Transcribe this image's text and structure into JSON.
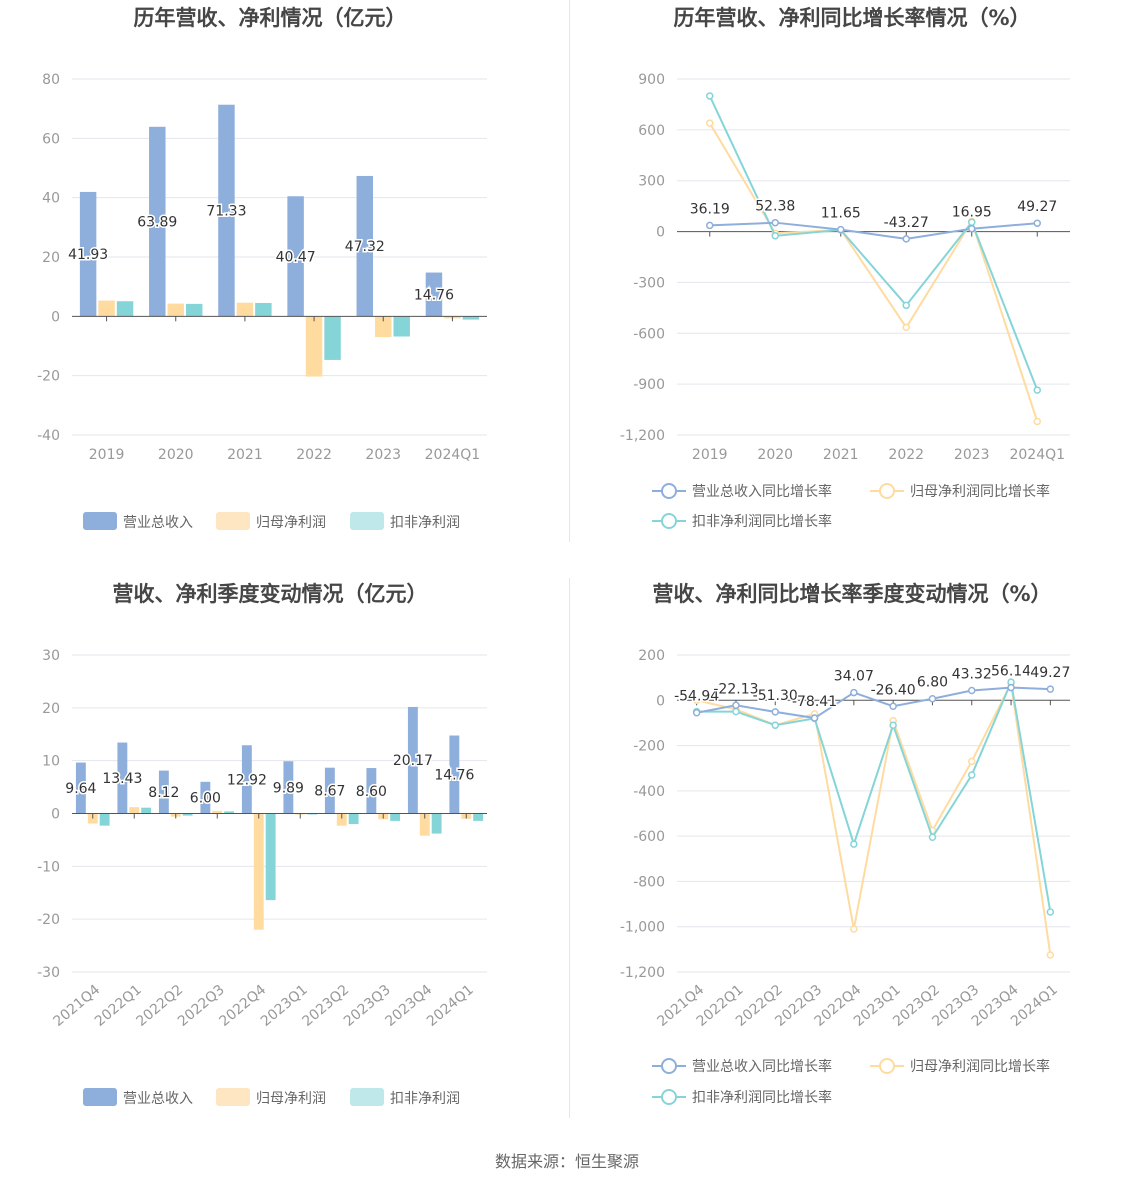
{
  "colors": {
    "revenue": "#8eaedb",
    "net_profit": "#ffdba0",
    "deducted_profit": "#85d5d8",
    "revenue_legend": "#8eaedb",
    "net_profit_legend": "#fde6c1",
    "deducted_profit_legend": "#bfe8ea",
    "grid": "#e3e6ee",
    "axis": "#555555"
  },
  "footer": {
    "source": "数据来源：恒生聚源"
  },
  "chart_data": [
    {
      "id": "annual_amount",
      "type": "bar",
      "title": "历年营收、净利情况（亿元）",
      "categories": [
        "2019",
        "2020",
        "2021",
        "2022",
        "2023",
        "2024Q1"
      ],
      "ylim": [
        -40,
        80
      ],
      "yticks": [
        80,
        60,
        40,
        20,
        0,
        -20,
        -40
      ],
      "ytick_labels": [
        "80",
        "60",
        "40",
        "20",
        "0",
        "-20",
        "-40"
      ],
      "grid": true,
      "legend_position": "bottom",
      "series": [
        {
          "name": "营业总收入",
          "values": [
            41.93,
            63.89,
            71.33,
            40.47,
            47.32,
            14.76
          ],
          "labels": [
            "41.93",
            "63.89",
            "71.33",
            "40.47",
            "47.32",
            "14.76"
          ]
        },
        {
          "name": "归母净利润",
          "values": [
            5.3,
            4.3,
            4.6,
            -20.3,
            -7.0,
            -0.7
          ]
        },
        {
          "name": "扣非净利润",
          "values": [
            5.1,
            4.2,
            4.5,
            -14.7,
            -6.8,
            -1.1
          ]
        }
      ]
    },
    {
      "id": "annual_growth",
      "type": "line",
      "title": "历年营收、净利同比增长率情况（%）",
      "categories": [
        "2019",
        "2020",
        "2021",
        "2022",
        "2023",
        "2024Q1"
      ],
      "ylim": [
        -1200,
        900
      ],
      "yticks": [
        900,
        600,
        300,
        0,
        -300,
        -600,
        -900,
        -1200
      ],
      "ytick_labels": [
        "900",
        "600",
        "300",
        "0",
        "-300",
        "-600",
        "-900",
        "-1,200"
      ],
      "grid": true,
      "legend_position": "bottom",
      "series": [
        {
          "name": "营业总收入同比增长率",
          "values": [
            36.19,
            52.38,
            11.65,
            -43.27,
            16.95,
            49.27
          ],
          "labels": [
            "36.19",
            "52.38",
            "11.65",
            "-43.27",
            "16.95",
            "49.27"
          ]
        },
        {
          "name": "归母净利润同比增长率",
          "values": [
            640,
            -10,
            10,
            -565,
            60,
            -1120
          ]
        },
        {
          "name": "扣非净利润同比增长率",
          "values": [
            800,
            -25,
            10,
            -435,
            55,
            -935
          ]
        }
      ]
    },
    {
      "id": "quarterly_amount",
      "type": "bar",
      "title": "营收、净利季度变动情况（亿元）",
      "categories": [
        "2021Q4",
        "2022Q1",
        "2022Q2",
        "2022Q3",
        "2022Q4",
        "2023Q1",
        "2023Q2",
        "2023Q3",
        "2023Q4",
        "2024Q1"
      ],
      "ylim": [
        -30,
        30
      ],
      "yticks": [
        30,
        20,
        10,
        0,
        -10,
        -20,
        -30
      ],
      "ytick_labels": [
        "30",
        "20",
        "10",
        "0",
        "-10",
        "-20",
        "-30"
      ],
      "grid": true,
      "legend_position": "bottom",
      "series": [
        {
          "name": "营业总收入",
          "values": [
            9.64,
            13.43,
            8.12,
            6.0,
            12.92,
            9.89,
            8.67,
            8.6,
            20.17,
            14.76
          ],
          "labels": [
            "9.64",
            "13.43",
            "8.12",
            "6.00",
            "12.92",
            "9.89",
            "8.67",
            "8.60",
            "20.17",
            "14.76"
          ]
        },
        {
          "name": "归母净利润",
          "values": [
            -1.9,
            1.2,
            -0.6,
            0.5,
            -22.0,
            -0.1,
            -2.3,
            -1.1,
            -4.2,
            -1.0
          ]
        },
        {
          "name": "扣非净利润",
          "values": [
            -2.3,
            1.1,
            -0.4,
            0.4,
            -16.4,
            -0.1,
            -2.0,
            -1.4,
            -3.8,
            -1.4
          ]
        }
      ]
    },
    {
      "id": "quarterly_growth",
      "type": "line",
      "title": "营收、净利同比增长率季度变动情况（%）",
      "categories": [
        "2021Q4",
        "2022Q1",
        "2022Q2",
        "2022Q3",
        "2022Q4",
        "2023Q1",
        "2023Q2",
        "2023Q3",
        "2023Q4",
        "2024Q1"
      ],
      "ylim": [
        -1200,
        200
      ],
      "yticks": [
        200,
        0,
        -200,
        -400,
        -600,
        -800,
        -1000,
        -1200
      ],
      "ytick_labels": [
        "200",
        "0",
        "-200",
        "-400",
        "-600",
        "-800",
        "-1,000",
        "-1,200"
      ],
      "grid": true,
      "legend_position": "bottom",
      "series": [
        {
          "name": "营业总收入同比增长率",
          "values": [
            -54.94,
            -22.13,
            -51.3,
            -78.41,
            34.07,
            -26.4,
            6.8,
            43.32,
            56.14,
            49.27
          ],
          "labels": [
            "-54.94",
            "-22.13",
            "-51.30",
            "-78.41",
            "34.07",
            "-26.40",
            "6.80",
            "43.32",
            "56.14",
            "49.27"
          ]
        },
        {
          "name": "归母净利润同比增长率",
          "values": [
            0,
            -40,
            -110,
            -60,
            -1010,
            -90,
            -575,
            -270,
            75,
            -1125
          ]
        },
        {
          "name": "扣非净利润同比增长率",
          "values": [
            -50,
            -50,
            -110,
            -80,
            -635,
            -110,
            -605,
            -330,
            80,
            -935
          ]
        }
      ]
    }
  ]
}
